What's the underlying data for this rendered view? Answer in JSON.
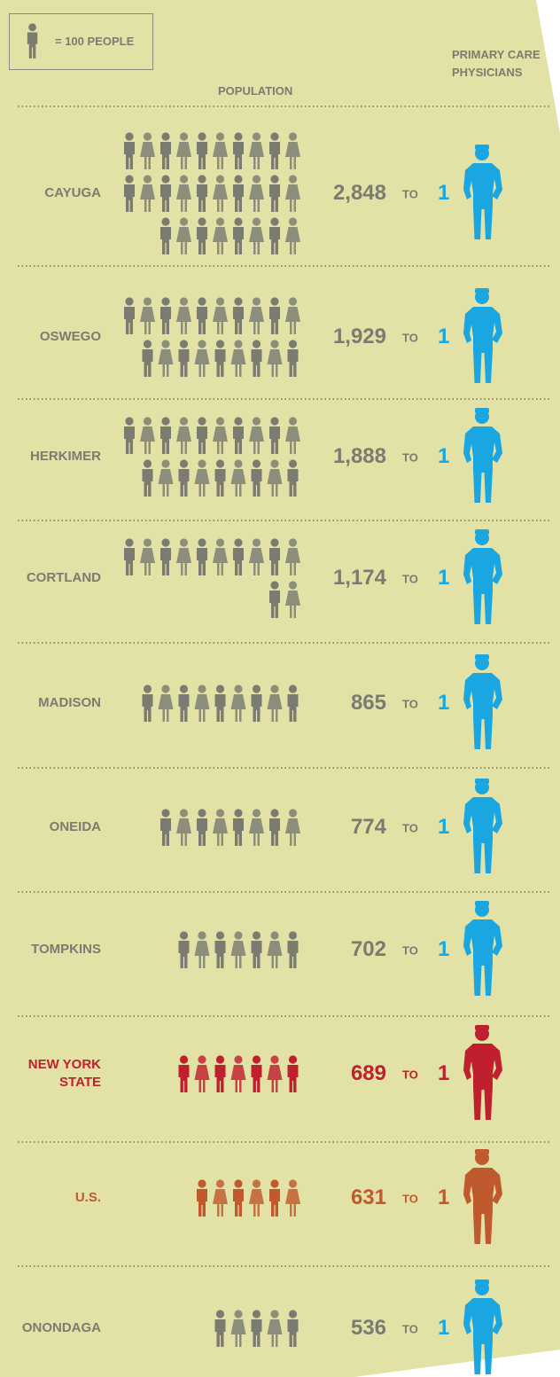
{
  "chart_data": {
    "type": "pictograph",
    "icon_unit": 100,
    "icon_label": "= 100 PEOPLE",
    "population_label": "POPULATION",
    "physicians_label": "PRIMARY CARE PHYSICIANS",
    "categories": [
      "CAYUGA",
      "OSWEGO",
      "HERKIMER",
      "CORTLAND",
      "MADISON",
      "ONEIDA",
      "TOMPKINS",
      "NEW YORK STATE",
      "U.S.",
      "ONONDAGA"
    ],
    "values": [
      2848,
      1929,
      1888,
      1174,
      865,
      774,
      702,
      689,
      631,
      536
    ],
    "value_labels": [
      "2,848",
      "1,929",
      "1,888",
      "1,174",
      "865",
      "774",
      "702",
      "689",
      "631",
      "536"
    ],
    "colors": [
      "#7b7b72",
      "#7b7b72",
      "#7b7b72",
      "#7b7b72",
      "#7b7b72",
      "#7b7b72",
      "#7b7b72",
      "#c0202e",
      "#c05a2e",
      "#7b7b72"
    ],
    "physician_colors": [
      "#1aa7e1",
      "#1aa7e1",
      "#1aa7e1",
      "#1aa7e1",
      "#1aa7e1",
      "#1aa7e1",
      "#1aa7e1",
      "#c0202e",
      "#c05a2e",
      "#1aa7e1"
    ],
    "ratio_word": "TO",
    "ratio_per": 1
  }
}
